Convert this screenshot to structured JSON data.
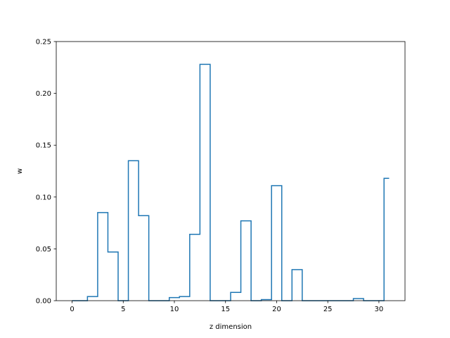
{
  "chart_data": {
    "type": "line",
    "drawstyle": "steps-mid",
    "title": "",
    "xlabel": "z dimension",
    "ylabel": "w",
    "xlim": [
      -1.55,
      32.55
    ],
    "ylim": [
      0,
      0.25
    ],
    "xticks": [
      0,
      5,
      10,
      15,
      20,
      25,
      30
    ],
    "yticks": [
      0.0,
      0.05,
      0.1,
      0.15,
      0.2,
      0.25
    ],
    "ytick_labels": [
      "0.00",
      "0.05",
      "0.10",
      "0.15",
      "0.20",
      "0.25"
    ],
    "grid": false,
    "color": "#1f77b4",
    "x": [
      0,
      1,
      2,
      3,
      4,
      5,
      6,
      7,
      8,
      9,
      10,
      11,
      12,
      13,
      14,
      15,
      16,
      17,
      18,
      19,
      20,
      21,
      22,
      23,
      24,
      25,
      26,
      27,
      28,
      29,
      30,
      31
    ],
    "values": [
      0.0,
      0.0,
      0.004,
      0.085,
      0.047,
      0.0,
      0.135,
      0.082,
      0.0,
      0.0,
      0.003,
      0.004,
      0.064,
      0.228,
      0.0,
      0.0,
      0.008,
      0.077,
      0.0,
      0.001,
      0.111,
      0.0,
      0.03,
      0.0,
      0.0,
      0.0,
      0.0,
      0.0,
      0.002,
      0.0,
      0.0,
      0.118
    ]
  }
}
